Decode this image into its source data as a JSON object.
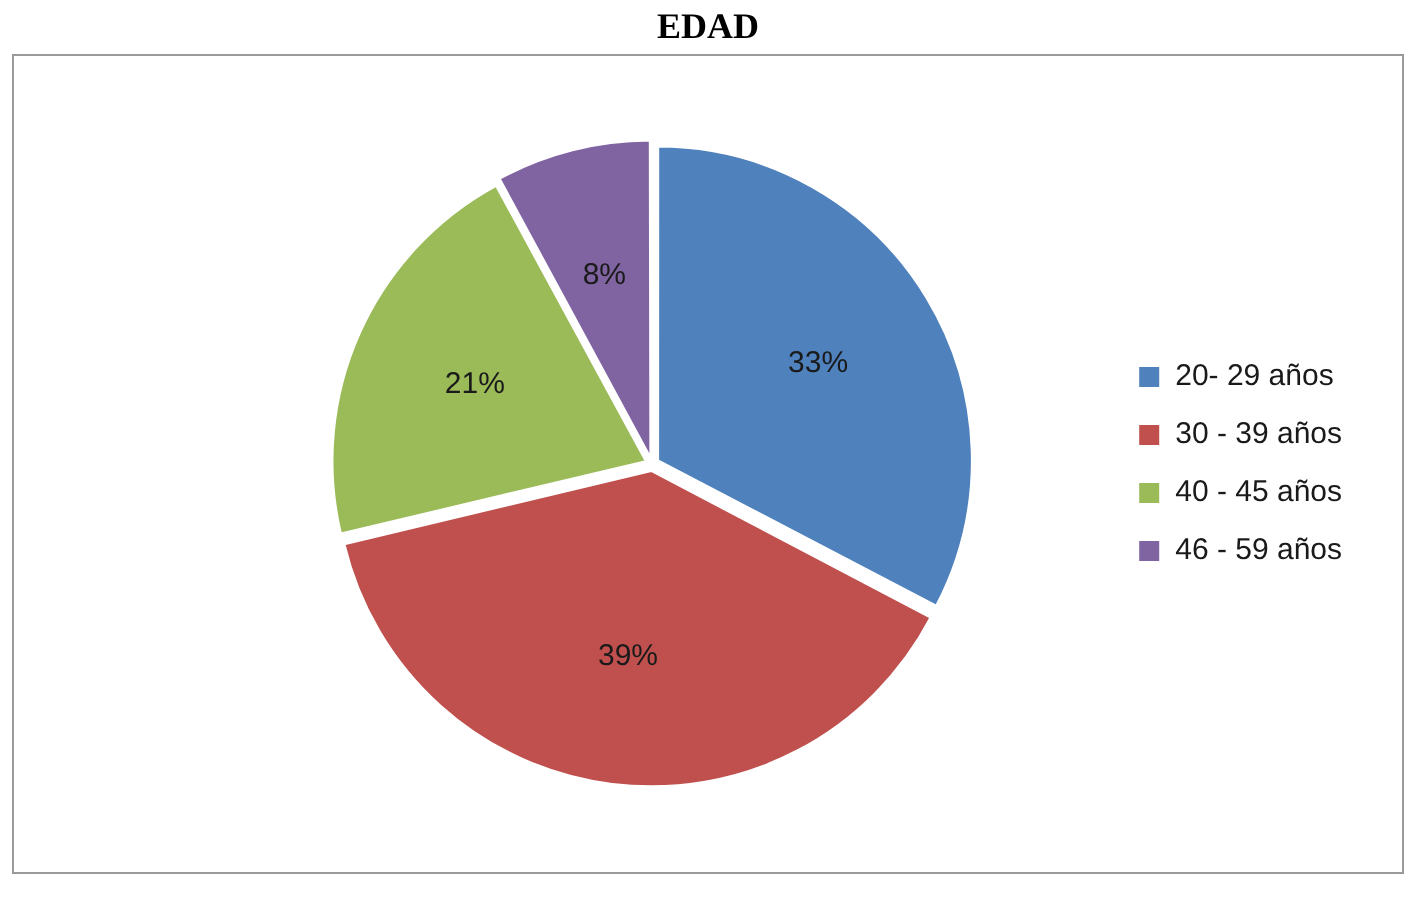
{
  "chart_data": {
    "type": "pie",
    "title": "EDAD",
    "categories": [
      "20- 29 años",
      "30 - 39 años",
      "40 - 45 años",
      "46 - 59 años"
    ],
    "values": [
      33,
      39,
      21,
      8
    ],
    "value_labels": [
      "33%",
      "39%",
      "21%",
      "8%"
    ],
    "colors": [
      "#4f81bd",
      "#c0504d",
      "#9bbb59",
      "#8064a2"
    ],
    "legend": "right"
  }
}
